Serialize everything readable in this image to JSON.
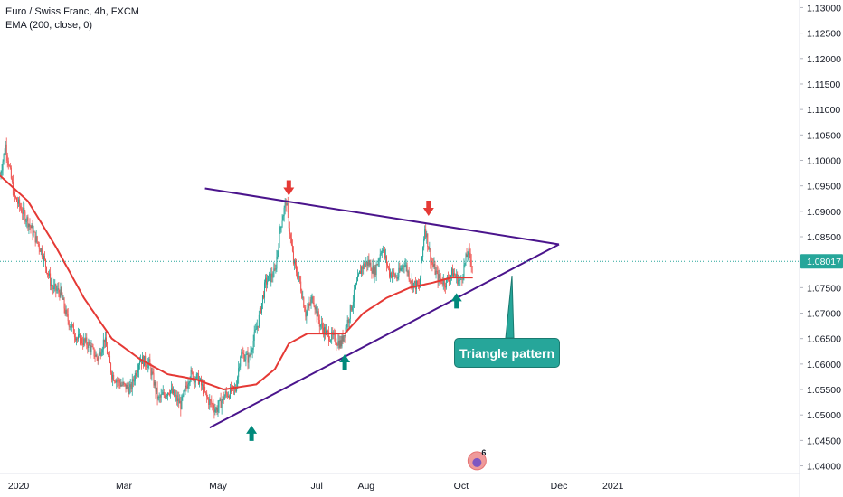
{
  "legend": {
    "line1": "Euro / Swiss Franc, 4h, FXCM",
    "line2": "EMA (200, close, 0)"
  },
  "colors": {
    "up": "#26a69a",
    "down": "#ef5350",
    "ema": "#e53935",
    "trendline": "#4a148c",
    "price_line": "#26a69a",
    "arrow_up": "#00897b",
    "arrow_down": "#e53935",
    "callout": "#26a69a"
  },
  "callout": {
    "text": "Triangle pattern"
  },
  "badge": {
    "count": "6"
  },
  "chart_data": {
    "type": "candlestick",
    "x_tick_labels": [
      "2020",
      "Mar",
      "May",
      "Jul",
      "Aug",
      "Oct",
      "Dec",
      "2021"
    ],
    "y_tick_labels": [
      "1.13000",
      "1.12500",
      "1.12000",
      "1.11500",
      "1.11000",
      "1.10500",
      "1.10000",
      "1.09500",
      "1.09000",
      "1.08500",
      "1.08000",
      "1.07500",
      "1.07000",
      "1.06500",
      "1.06000",
      "1.05500",
      "1.05000",
      "1.04500",
      "1.04000"
    ],
    "ylim": [
      1.0385,
      1.1315
    ],
    "last_price": "1.08017",
    "price_path": [
      [
        0.0,
        1.097
      ],
      [
        0.6,
        1.103
      ],
      [
        1.5,
        1.093
      ],
      [
        3.0,
        1.088
      ],
      [
        4.5,
        1.082
      ],
      [
        5.6,
        1.075
      ],
      [
        6.5,
        1.074
      ],
      [
        7.2,
        1.069
      ],
      [
        8.3,
        1.065
      ],
      [
        9.4,
        1.064
      ],
      [
        10.5,
        1.061
      ],
      [
        11.2,
        1.065
      ],
      [
        12.0,
        1.058
      ],
      [
        13.0,
        1.056
      ],
      [
        14.0,
        1.055
      ],
      [
        15.0,
        1.061
      ],
      [
        16.0,
        1.06
      ],
      [
        17.0,
        1.053
      ],
      [
        18.2,
        1.055
      ],
      [
        19.4,
        1.052
      ],
      [
        20.4,
        1.058
      ],
      [
        21.3,
        1.057
      ],
      [
        22.3,
        1.053
      ],
      [
        23.2,
        1.051
      ],
      [
        24.2,
        1.054
      ],
      [
        25.3,
        1.055
      ],
      [
        25.8,
        1.062
      ],
      [
        26.7,
        1.061
      ],
      [
        27.8,
        1.069
      ],
      [
        28.5,
        1.076
      ],
      [
        29.5,
        1.078
      ],
      [
        30.1,
        1.087
      ],
      [
        30.7,
        1.092
      ],
      [
        31.5,
        1.08
      ],
      [
        32.2,
        1.076
      ],
      [
        32.8,
        1.07
      ],
      [
        33.6,
        1.073
      ],
      [
        34.3,
        1.068
      ],
      [
        35.0,
        1.066
      ],
      [
        35.8,
        1.065
      ],
      [
        36.6,
        1.064
      ],
      [
        37.4,
        1.069
      ],
      [
        38.2,
        1.075
      ],
      [
        38.8,
        1.079
      ],
      [
        39.5,
        1.08
      ],
      [
        40.2,
        1.078
      ],
      [
        41.0,
        1.083
      ],
      [
        41.8,
        1.078
      ],
      [
        42.6,
        1.077
      ],
      [
        43.4,
        1.08
      ],
      [
        44.2,
        1.076
      ],
      [
        45.0,
        1.075
      ],
      [
        45.6,
        1.087
      ],
      [
        46.3,
        1.08
      ],
      [
        47.0,
        1.077
      ],
      [
        47.8,
        1.076
      ],
      [
        48.6,
        1.078
      ],
      [
        49.4,
        1.076
      ],
      [
        50.2,
        1.082
      ],
      [
        50.8,
        1.079
      ]
    ],
    "ema_path": [
      [
        0.0,
        1.097
      ],
      [
        3.0,
        1.092
      ],
      [
        6.0,
        1.083
      ],
      [
        9.0,
        1.073
      ],
      [
        12.0,
        1.065
      ],
      [
        15.0,
        1.061
      ],
      [
        18.0,
        1.058
      ],
      [
        21.0,
        1.057
      ],
      [
        24.0,
        1.055
      ],
      [
        27.5,
        1.056
      ],
      [
        29.5,
        1.059
      ],
      [
        31.0,
        1.064
      ],
      [
        33.0,
        1.066
      ],
      [
        35.0,
        1.066
      ],
      [
        37.0,
        1.066
      ],
      [
        39.0,
        1.07
      ],
      [
        41.5,
        1.073
      ],
      [
        44.0,
        1.075
      ],
      [
        46.5,
        1.076
      ],
      [
        48.5,
        1.077
      ],
      [
        50.8,
        1.077
      ]
    ],
    "upper_trendline": [
      [
        22.0,
        1.0945
      ],
      [
        60.0,
        1.0835
      ]
    ],
    "lower_trendline": [
      [
        22.5,
        1.0475
      ],
      [
        60.0,
        1.0835
      ]
    ],
    "arrows_down": [
      [
        31.0,
        1.0945
      ],
      [
        46.0,
        1.0905
      ]
    ],
    "arrows_up": [
      [
        27.0,
        1.0465
      ],
      [
        37.0,
        1.0605
      ],
      [
        49.0,
        1.0725
      ]
    ],
    "badge_pos": [
      51.2,
      1.041
    ]
  }
}
